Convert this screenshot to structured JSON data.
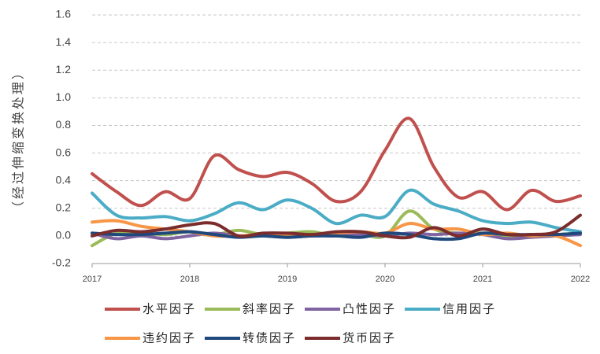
{
  "chart_data": {
    "type": "line",
    "ylabel": "（经过伸缩变换处理）",
    "x": [
      2017,
      2017.25,
      2017.5,
      2017.75,
      2018,
      2018.25,
      2018.5,
      2018.75,
      2019,
      2019.25,
      2019.5,
      2019.75,
      2020,
      2020.25,
      2020.5,
      2020.75,
      2021,
      2021.25,
      2021.5,
      2021.75,
      2022
    ],
    "xlim": [
      2017,
      2022
    ],
    "xticks": [
      2017,
      2018,
      2019,
      2020,
      2021,
      2022
    ],
    "ylim": [
      -0.2,
      1.6
    ],
    "yticks": [
      -0.2,
      {
        "value": 0,
        "label": "0.0"
      },
      0.2,
      0.4,
      0.6,
      0.8,
      {
        "value": 1,
        "label": "1.0"
      },
      1.2,
      1.4,
      1.6
    ],
    "grid": true,
    "legend": "bottom",
    "series": [
      {
        "name": "水平因子",
        "color": "#c0504d",
        "values": [
          0.45,
          0.32,
          0.22,
          0.32,
          0.27,
          0.58,
          0.48,
          0.43,
          0.46,
          0.38,
          0.25,
          0.32,
          0.62,
          0.85,
          0.5,
          0.28,
          0.32,
          0.19,
          0.33,
          0.25,
          0.29
        ]
      },
      {
        "name": "斜率因子",
        "color": "#9bbb59",
        "values": [
          -0.07,
          0.02,
          0.02,
          0.01,
          0.03,
          0.01,
          0.04,
          0.01,
          0.02,
          0.03,
          0.0,
          0.01,
          0.0,
          0.18,
          0.05,
          0.02,
          0.02,
          0.0,
          0.01,
          0.01,
          0.02
        ]
      },
      {
        "name": "凸性因子",
        "color": "#8064a2",
        "values": [
          0.02,
          -0.02,
          0.0,
          -0.02,
          0.0,
          0.02,
          0.0,
          0.0,
          -0.01,
          0.0,
          0.0,
          0.01,
          0.0,
          0.02,
          0.01,
          0.02,
          0.01,
          -0.02,
          -0.01,
          0.0,
          0.01
        ]
      },
      {
        "name": "信用因子",
        "color": "#4bacc6",
        "values": [
          0.31,
          0.15,
          0.13,
          0.14,
          0.11,
          0.16,
          0.24,
          0.19,
          0.26,
          0.2,
          0.09,
          0.15,
          0.14,
          0.33,
          0.23,
          0.18,
          0.11,
          0.09,
          0.1,
          0.06,
          0.03
        ]
      },
      {
        "name": "违约因子",
        "color": "#f79646",
        "values": [
          0.1,
          0.11,
          0.07,
          0.05,
          0.03,
          0.0,
          0.0,
          0.01,
          0.01,
          0.0,
          0.02,
          0.03,
          0.02,
          0.09,
          0.05,
          0.05,
          0.01,
          0.02,
          0.0,
          0.0,
          -0.07
        ]
      },
      {
        "name": "转债因子",
        "color": "#1f497d",
        "values": [
          0.02,
          0.01,
          0.01,
          0.02,
          0.03,
          0.01,
          -0.01,
          0.0,
          -0.01,
          0.0,
          0.0,
          -0.01,
          0.02,
          0.01,
          -0.02,
          -0.02,
          0.02,
          0.01,
          0.01,
          0.01,
          0.02
        ]
      },
      {
        "name": "货币因子",
        "color": "#7b2c2c",
        "values": [
          0.0,
          0.04,
          0.03,
          0.05,
          0.08,
          0.09,
          0.0,
          0.02,
          0.02,
          0.01,
          0.03,
          0.03,
          0.0,
          -0.01,
          0.06,
          0.0,
          0.05,
          0.01,
          0.01,
          0.03,
          0.15
        ]
      }
    ]
  }
}
